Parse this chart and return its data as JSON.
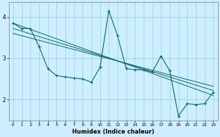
{
  "xlabel": "Humidex (Indice chaleur)",
  "bg_color": "#cceeff",
  "grid_color": "#99cccc",
  "line_color": "#006666",
  "xlim": [
    -0.5,
    23.5
  ],
  "ylim": [
    1.5,
    4.35
  ],
  "yticks": [
    2,
    3,
    4
  ],
  "xticks": [
    0,
    1,
    2,
    3,
    4,
    5,
    6,
    7,
    8,
    9,
    10,
    11,
    12,
    13,
    14,
    15,
    16,
    17,
    18,
    19,
    20,
    21,
    22,
    23
  ],
  "line1_x": [
    0,
    1,
    2,
    3,
    4,
    5,
    6,
    7,
    8,
    9,
    10,
    11,
    12,
    13,
    14,
    15,
    16,
    17,
    18,
    19,
    20,
    21,
    22,
    23
  ],
  "line1_y": [
    3.85,
    3.72,
    3.72,
    3.28,
    2.75,
    2.58,
    2.55,
    2.52,
    2.5,
    2.42,
    2.78,
    4.15,
    3.55,
    2.75,
    2.72,
    2.72,
    2.67,
    3.05,
    2.7,
    1.6,
    1.9,
    1.88,
    1.9,
    2.18
  ],
  "line2_x": [
    0,
    23
  ],
  "line2_y": [
    3.85,
    2.1
  ],
  "line3_x": [
    0,
    23
  ],
  "line3_y": [
    3.72,
    2.22
  ],
  "line4_x": [
    0,
    23
  ],
  "line4_y": [
    3.6,
    2.32
  ]
}
